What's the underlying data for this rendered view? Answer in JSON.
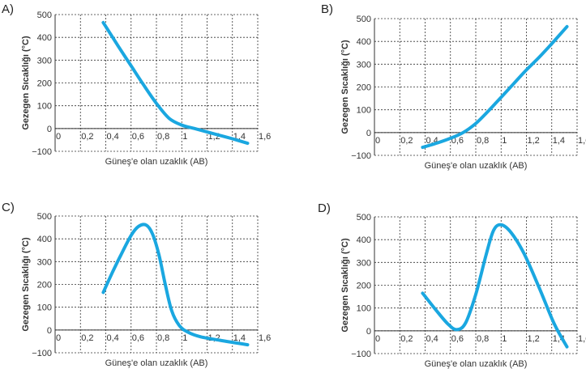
{
  "chart_data": [
    {
      "type": "line",
      "option_label": "A)",
      "xlabel": "Güneş'e olan uzaklık (AB)",
      "ylabel": "Gezegen Sıcaklığı (°C)",
      "xlim": [
        0,
        1.6
      ],
      "ylim": [
        -100,
        500
      ],
      "x_ticks": [
        "0",
        "0,2",
        "0,4",
        "0,6",
        "0,8",
        "1",
        "1,2",
        "1,4",
        "1,6"
      ],
      "y_ticks": [
        "−100",
        "0",
        "100",
        "200",
        "300",
        "400",
        "500"
      ],
      "series": [
        {
          "x": [
            0.38,
            0.5,
            0.6,
            0.7,
            0.8,
            0.9,
            1.0,
            1.1,
            1.2,
            1.3,
            1.4,
            1.52
          ],
          "y": [
            465,
            360,
            275,
            190,
            110,
            45,
            15,
            0,
            -15,
            -30,
            -45,
            -65
          ]
        }
      ]
    },
    {
      "type": "line",
      "option_label": "B)",
      "xlabel": "Güneş'e olan uzaklık (AB)",
      "ylabel": "Gezegen Sıcaklığı (°C)",
      "xlim": [
        0,
        1.6
      ],
      "ylim": [
        -100,
        500
      ],
      "x_ticks": [
        "0",
        "0,2",
        "0,4",
        "0,6",
        "0,8",
        "1",
        "1,2",
        "1,4",
        "1,6"
      ],
      "y_ticks": [
        "−100",
        "0",
        "100",
        "200",
        "300",
        "400",
        "500"
      ],
      "series": [
        {
          "x": [
            0.38,
            0.5,
            0.6,
            0.7,
            0.8,
            0.9,
            1.0,
            1.1,
            1.2,
            1.3,
            1.4,
            1.52
          ],
          "y": [
            -65,
            -45,
            -25,
            0,
            40,
            95,
            155,
            215,
            275,
            330,
            390,
            465
          ]
        }
      ]
    },
    {
      "type": "line",
      "option_label": "C)",
      "xlabel": "Güneş'e olan uzaklık (AB)",
      "ylabel": "Gezegen Sıcaklığı (°C)",
      "xlim": [
        0,
        1.6
      ],
      "ylim": [
        -100,
        500
      ],
      "x_ticks": [
        "0",
        "0,2",
        "0,4",
        "0,6",
        "0,8",
        "1",
        "1,2",
        "1,4",
        "1,6"
      ],
      "y_ticks": [
        "−100",
        "0",
        "100",
        "200",
        "300",
        "400",
        "500"
      ],
      "series": [
        {
          "x": [
            0.38,
            0.45,
            0.52,
            0.6,
            0.66,
            0.72,
            0.77,
            0.82,
            0.87,
            0.92,
            0.98,
            1.05,
            1.15,
            1.3,
            1.52
          ],
          "y": [
            165,
            250,
            330,
            415,
            455,
            460,
            420,
            330,
            200,
            85,
            20,
            -10,
            -30,
            -45,
            -65
          ]
        }
      ]
    },
    {
      "type": "line",
      "option_label": "D)",
      "xlabel": "Güneş'e olan uzaklık (AB)",
      "ylabel": "Gezegen Sıcaklığı (°C)",
      "xlim": [
        0,
        1.6
      ],
      "ylim": [
        -100,
        500
      ],
      "x_ticks": [
        "0",
        "0,2",
        "0,4",
        "0,6",
        "0,8",
        "1",
        "1,2",
        "1,4",
        "1,6"
      ],
      "y_ticks": [
        "−100",
        "0",
        "100",
        "200",
        "300",
        "400",
        "500"
      ],
      "series": [
        {
          "x": [
            0.38,
            0.48,
            0.58,
            0.65,
            0.72,
            0.8,
            0.88,
            0.94,
            1.0,
            1.08,
            1.18,
            1.3,
            1.42,
            1.52
          ],
          "y": [
            165,
            95,
            30,
            5,
            35,
            160,
            330,
            440,
            465,
            430,
            340,
            190,
            30,
            -70
          ]
        }
      ]
    }
  ]
}
